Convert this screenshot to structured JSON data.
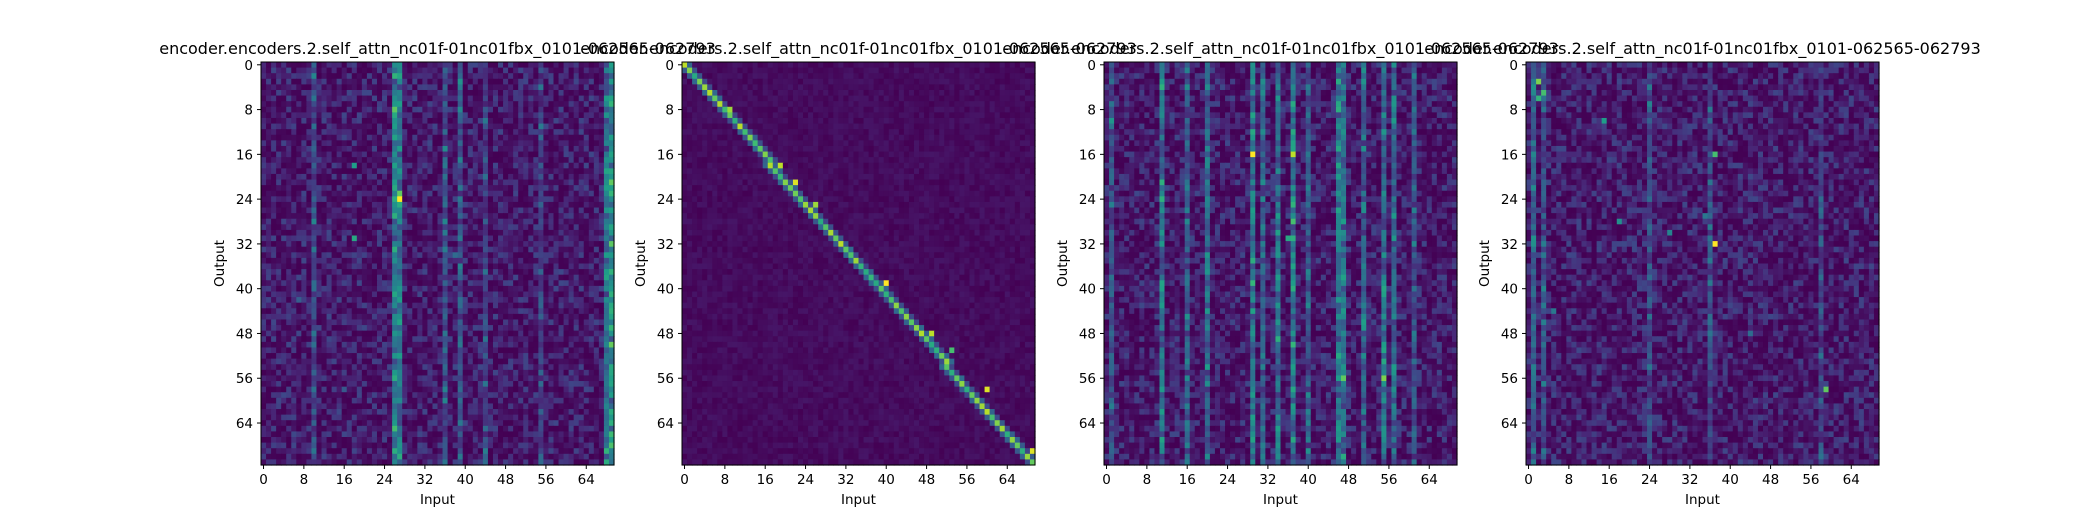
{
  "figure": {
    "background": "#ffffff",
    "colormap": [
      "#440154",
      "#482878",
      "#3e4989",
      "#31688e",
      "#26828e",
      "#1f9e89",
      "#35b779",
      "#6ece58",
      "#b5de2b",
      "#fde725"
    ]
  },
  "chart_data": [
    {
      "type": "heatmap",
      "title": "encoder.encoders.2.self_attn_nc01f-01nc01fbx_0101-062565-062793",
      "xlabel": "Input",
      "ylabel": "Output",
      "x_ticks": [
        0,
        8,
        16,
        24,
        32,
        40,
        48,
        56,
        64
      ],
      "y_ticks": [
        0,
        8,
        16,
        24,
        32,
        40,
        48,
        56,
        64
      ],
      "n_input": 70,
      "n_output": 72,
      "pattern": "diffuse",
      "column_weights": [
        [
          26,
          0.55
        ],
        [
          27,
          0.5
        ],
        [
          10,
          0.25
        ],
        [
          36,
          0.3
        ],
        [
          39,
          0.3
        ],
        [
          44,
          0.22
        ],
        [
          55,
          0.2
        ],
        [
          68,
          0.45
        ],
        [
          69,
          0.6
        ]
      ],
      "hotspots": [
        [
          27,
          24,
          1.0
        ],
        [
          27,
          23,
          0.75
        ],
        [
          27,
          15,
          0.55
        ],
        [
          18,
          31,
          0.6
        ],
        [
          18,
          18,
          0.55
        ],
        [
          39,
          31,
          0.4
        ],
        [
          38,
          34,
          0.35
        ],
        [
          69,
          68,
          0.7
        ],
        [
          68,
          69,
          0.65
        ],
        [
          68,
          37,
          0.55
        ],
        [
          69,
          39,
          0.5
        ],
        [
          7,
          42,
          0.3
        ],
        [
          16,
          58,
          0.28
        ]
      ]
    },
    {
      "type": "heatmap",
      "title": "encoder.encoders.2.self_attn_nc01f-01nc01fbx_0101-062565-062793",
      "xlabel": "Input",
      "ylabel": "Output",
      "x_ticks": [
        0,
        8,
        16,
        24,
        32,
        40,
        48,
        56,
        64
      ],
      "y_ticks": [
        0,
        8,
        16,
        24,
        32,
        40,
        48,
        56,
        64
      ],
      "n_input": 70,
      "n_output": 72,
      "pattern": "diagonal",
      "column_weights": [],
      "hotspots": [
        [
          0,
          0,
          0.9
        ],
        [
          9,
          8,
          0.85
        ],
        [
          13,
          13,
          0.8
        ],
        [
          19,
          18,
          0.9
        ],
        [
          22,
          21,
          0.95
        ],
        [
          26,
          25,
          0.85
        ],
        [
          40,
          39,
          1.0
        ],
        [
          49,
          48,
          0.9
        ],
        [
          53,
          51,
          0.7
        ],
        [
          60,
          58,
          0.95
        ],
        [
          69,
          69,
          0.95
        ]
      ]
    },
    {
      "type": "heatmap",
      "title": "encoder.encoders.2.self_attn_nc01f-01nc01fbx_0101-062565-062793",
      "xlabel": "Input",
      "ylabel": "Output",
      "x_ticks": [
        0,
        8,
        16,
        24,
        32,
        40,
        48,
        56,
        64
      ],
      "y_ticks": [
        0,
        8,
        16,
        24,
        32,
        40,
        48,
        56,
        64
      ],
      "n_input": 70,
      "n_output": 72,
      "pattern": "columns",
      "column_weights": [
        [
          11,
          0.45
        ],
        [
          16,
          0.35
        ],
        [
          20,
          0.4
        ],
        [
          29,
          0.5
        ],
        [
          31,
          0.35
        ],
        [
          34,
          0.45
        ],
        [
          37,
          0.5
        ],
        [
          40,
          0.3
        ],
        [
          46,
          0.5
        ],
        [
          47,
          0.45
        ],
        [
          51,
          0.35
        ],
        [
          55,
          0.45
        ],
        [
          57,
          0.4
        ],
        [
          61,
          0.3
        ],
        [
          1,
          0.3
        ]
      ],
      "hotspots": [
        [
          29,
          16,
          1.0
        ],
        [
          37,
          16,
          0.9
        ],
        [
          37,
          28,
          0.7
        ],
        [
          36,
          31,
          0.6
        ],
        [
          46,
          52,
          0.6
        ],
        [
          47,
          56,
          0.75
        ],
        [
          55,
          56,
          0.8
        ],
        [
          55,
          53,
          0.6
        ],
        [
          57,
          54,
          0.55
        ],
        [
          46,
          64,
          0.5
        ]
      ]
    },
    {
      "type": "heatmap",
      "title": "encoder.encoders.2.self_attn_nc01f-01nc01fbx_0101-062565-062793",
      "xlabel": "Input",
      "ylabel": "Output",
      "x_ticks": [
        0,
        8,
        16,
        24,
        32,
        40,
        48,
        56,
        64
      ],
      "y_ticks": [
        0,
        8,
        16,
        24,
        32,
        40,
        48,
        56,
        64
      ],
      "n_input": 70,
      "n_output": 72,
      "pattern": "scattered",
      "column_weights": [
        [
          1,
          0.35
        ],
        [
          3,
          0.3
        ],
        [
          24,
          0.25
        ],
        [
          36,
          0.25
        ],
        [
          58,
          0.2
        ]
      ],
      "hotspots": [
        [
          2,
          3,
          0.8
        ],
        [
          3,
          5,
          0.7
        ],
        [
          2,
          6,
          0.65
        ],
        [
          37,
          32,
          1.0
        ],
        [
          37,
          16,
          0.7
        ],
        [
          59,
          58,
          0.75
        ],
        [
          15,
          10,
          0.55
        ],
        [
          18,
          28,
          0.5
        ],
        [
          28,
          30,
          0.45
        ],
        [
          35,
          27,
          0.4
        ],
        [
          5,
          44,
          0.4
        ],
        [
          44,
          48,
          0.35
        ]
      ]
    }
  ]
}
